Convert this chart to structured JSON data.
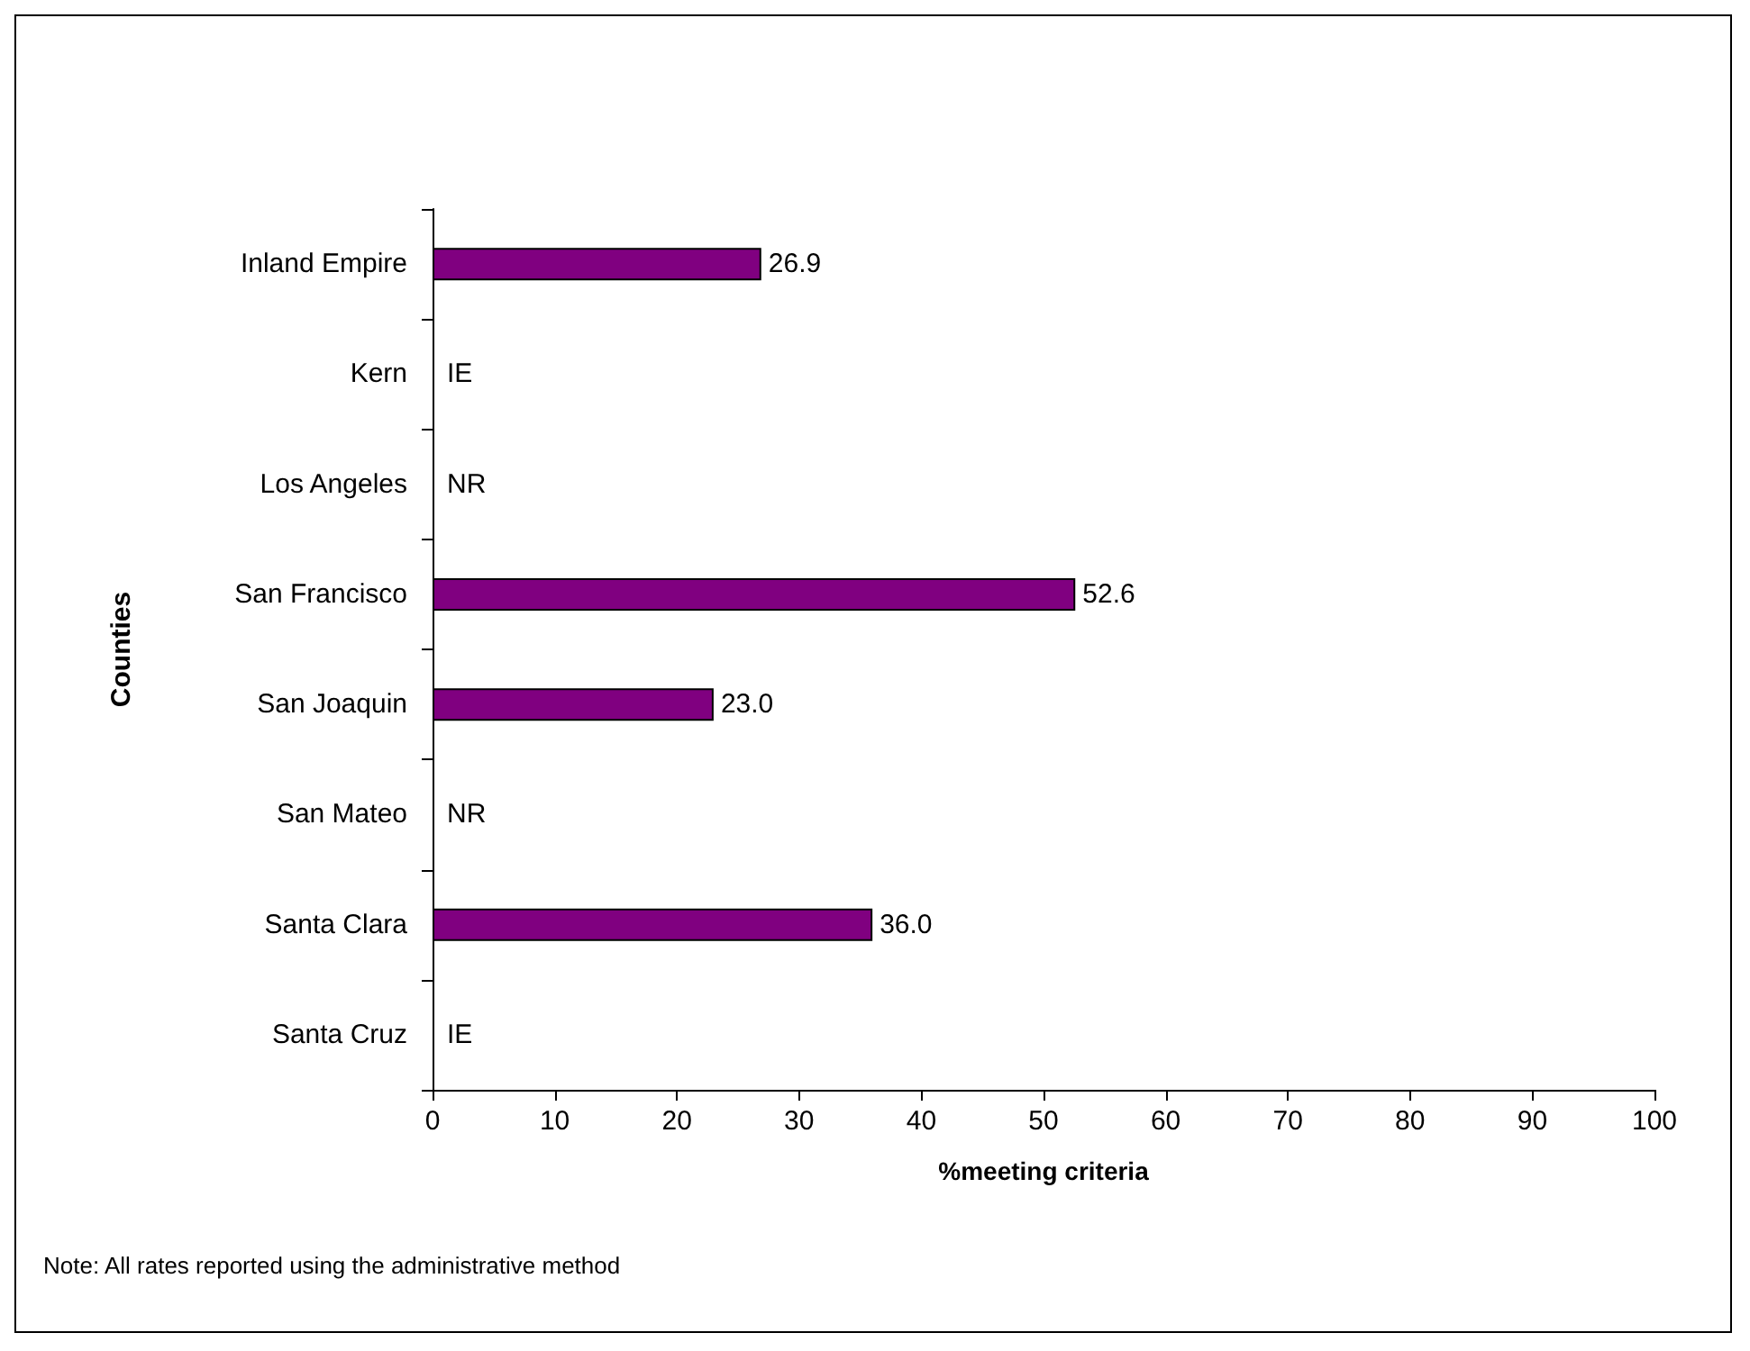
{
  "chart_data": {
    "type": "bar",
    "orientation": "horizontal",
    "categories": [
      "Inland Empire",
      "Kern",
      "Los Angeles",
      "San Francisco",
      "San Joaquin",
      "San Mateo",
      "Santa Clara",
      "Santa Cruz"
    ],
    "series": [
      {
        "color": "#800080",
        "values": [
          26.9,
          null,
          null,
          52.6,
          23.0,
          null,
          36.0,
          null
        ],
        "value_labels": [
          "26.9",
          "IE",
          "NR",
          "52.6",
          "23.0",
          "NR",
          "36.0",
          "IE"
        ]
      }
    ],
    "xlim": [
      0,
      100
    ],
    "xticks": [
      0,
      10,
      20,
      30,
      40,
      50,
      60,
      70,
      80,
      90,
      100
    ],
    "xlabel": "%meeting criteria",
    "ylabel": "Counties",
    "annotations": [
      "Note: All rates reported using the administrative method"
    ],
    "grid": false
  }
}
